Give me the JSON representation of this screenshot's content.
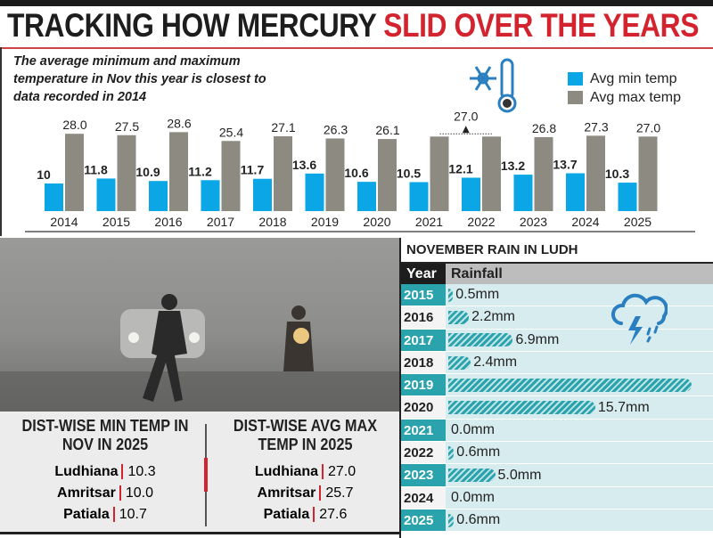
{
  "title": {
    "part1": "TRACKING HOW MERCURY",
    "part2": "SLID OVER THE YEARS"
  },
  "subtitle": "The average minimum and maximum temperature in Nov this year is closest to data recorded in 2014",
  "colors": {
    "min": "#0aa6e6",
    "max": "#8d8a82",
    "accent": "#d3232e",
    "rain": "#2aa3ad"
  },
  "icons": [
    "snowflake-icon",
    "thermometer-icon",
    "storm-cloud-icon"
  ],
  "chart_data": [
    {
      "type": "bar",
      "categories": [
        "2014",
        "2015",
        "2016",
        "2017",
        "2018",
        "2019",
        "2020",
        "2021",
        "2022",
        "2023",
        "2024",
        "2025"
      ],
      "series": [
        {
          "name": "Avg min temp",
          "values": [
            10,
            11.8,
            10.9,
            11.2,
            11.7,
            13.6,
            10.6,
            10.5,
            12.1,
            13.2,
            13.7,
            10.3
          ],
          "labels": [
            "10",
            "11.8",
            "10.9",
            "11.2",
            "11.7",
            "13.6",
            "10.6",
            "10.5",
            "12.1",
            "13.2",
            "13.7",
            "10.3"
          ]
        },
        {
          "name": "Avg max temp",
          "values": [
            28.0,
            27.5,
            28.6,
            25.4,
            27.1,
            26.3,
            26.1,
            27.0,
            27.0,
            26.8,
            27.3,
            27.0
          ],
          "labels": [
            "28.0",
            "27.5",
            "28.6",
            "25.4",
            "27.1",
            "26.3",
            "26.1",
            "",
            "",
            "26.8",
            "27.3",
            "27.0"
          ]
        }
      ],
      "annotation": "27.0",
      "legend": "top-right"
    },
    {
      "type": "bar",
      "title": "NOVEMBER RAIN IN LUDH",
      "headers": [
        "Year",
        "Rainfall"
      ],
      "categories": [
        "2015",
        "2016",
        "2017",
        "2018",
        "2019",
        "2020",
        "2021",
        "2022",
        "2023",
        "2024",
        "2025"
      ],
      "values": [
        0.5,
        2.2,
        6.9,
        2.4,
        26,
        15.7,
        0.0,
        0.6,
        5.0,
        0.0,
        0.6
      ],
      "labels": [
        "0.5mm",
        "2.2mm",
        "6.9mm",
        "2.4mm",
        "",
        "15.7mm",
        "0.0mm",
        "0.6mm",
        "5.0mm",
        "0.0mm",
        "0.6mm"
      ]
    }
  ],
  "min_panel": {
    "title": "DIST-WISE MIN TEMP IN NOV IN 2025",
    "rows": [
      {
        "city": "Ludhiana",
        "value": "10.3"
      },
      {
        "city": "Amritsar",
        "value": "10.0"
      },
      {
        "city": "Patiala",
        "value": "10.7"
      }
    ]
  },
  "max_panel": {
    "title": "DIST-WISE AVG MAX TEMP IN 2025",
    "rows": [
      {
        "city": "Ludhiana",
        "value": "27.0"
      },
      {
        "city": "Amritsar",
        "value": "25.7"
      },
      {
        "city": "Patiala",
        "value": "27.6"
      }
    ]
  }
}
